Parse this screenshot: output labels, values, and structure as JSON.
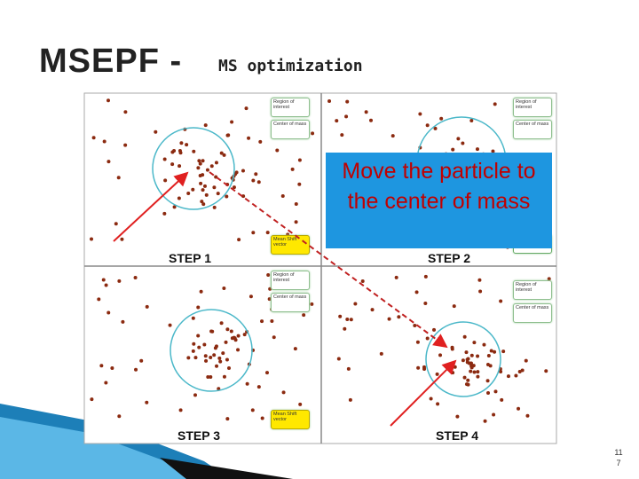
{
  "header": {
    "title": "MSEPF -",
    "subtitle": "MS optimization"
  },
  "figure": {
    "panels": [
      {
        "step": "STEP 1",
        "legend": [
          "Region of interest",
          "Center of mass",
          "Mean Shift vector"
        ]
      },
      {
        "step": "STEP 2",
        "legend": [
          "Region of interest",
          "Center of mass"
        ]
      },
      {
        "step": "STEP 3",
        "legend": [
          "Region of interest",
          "Center of mass",
          "Mean Shift vector"
        ]
      },
      {
        "step": "STEP 4",
        "legend": [
          "Region of interest",
          "Center of mass"
        ]
      }
    ]
  },
  "callout": "Move the particle to the center of mass",
  "page_number": "117"
}
